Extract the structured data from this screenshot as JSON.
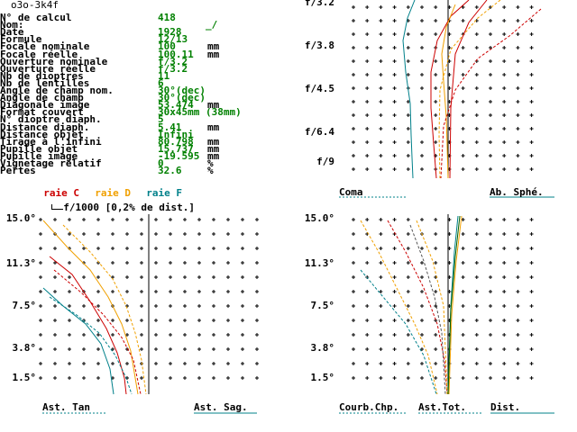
{
  "title": "o3o-3k4f",
  "params": [
    {
      "label": "N° de calcul",
      "value": "418",
      "unit": ""
    },
    {
      "label": "Nom:",
      "value": "",
      "unit": ""
    },
    {
      "label": "Date",
      "value": "1928",
      "unit": ""
    },
    {
      "label": "Formule",
      "value": "12/13",
      "unit": ""
    },
    {
      "label": "Focale nominale",
      "value": "100",
      "unit": "mm"
    },
    {
      "label": "Focale réelle",
      "value": "100.11",
      "unit": "mm"
    },
    {
      "label": "Ouverture nominale",
      "value": "f/3.2",
      "unit": ""
    },
    {
      "label": "Ouverture réelle",
      "value": "f/3.2",
      "unit": ""
    },
    {
      "label": "Nb de dioptres",
      "value": "11",
      "unit": ""
    },
    {
      "label": "Nb de lentilles",
      "value": "6",
      "unit": ""
    },
    {
      "label": "Angle de champ nom.",
      "value": "30°(dec)",
      "unit": ""
    },
    {
      "label": "Angle de champ",
      "value": "30°(dec)",
      "unit": ""
    },
    {
      "label": "Diagonale image",
      "value": "53.474",
      "unit": "mm"
    },
    {
      "label": "Format couvert",
      "value": "30x45mm (38mm)",
      "unit": ""
    },
    {
      "label": "N° dioptre diaph.",
      "value": "5",
      "unit": ""
    },
    {
      "label": "Distance diaph.",
      "value": "5.41",
      "unit": "mm"
    },
    {
      "label": "Distance objet",
      "value": "Infini",
      "unit": ""
    },
    {
      "label": "Tirage à l'infini",
      "value": "80.798",
      "unit": "mm"
    },
    {
      "label": "Pupille objet",
      "value": "15.737",
      "unit": "mm"
    },
    {
      "label": "Pupille image",
      "value": "-19.595",
      "unit": "mm"
    },
    {
      "label": "Vignetage relatif",
      "value": "0",
      "unit": "%"
    },
    {
      "label": "Pertes",
      "value": "32.6",
      "unit": "%"
    }
  ],
  "legend": {
    "raie_c": "raie C",
    "raie_d": "raie D",
    "raie_f": "raie F",
    "scale": "f/1000 [0,2% de dist.]",
    "color_c": "#cc0000",
    "color_d": "#f0a000",
    "color_f": "#00808a"
  },
  "aperture_plot": {
    "ticks": [
      "f/3.2",
      "f/3.8",
      "f/4.5",
      "f/6.4",
      "f/9"
    ],
    "label_left": "Coma",
    "label_right": "Ab. Sphé."
  },
  "field_plot": {
    "ticks": [
      "15.0°",
      "11.3°",
      "7.5°",
      "3.8°",
      "1.5°"
    ],
    "label_left": "Ast. Tan",
    "label_right": "Ast. Sag."
  },
  "field_plot_2": {
    "ticks": [
      "15.0°",
      "11.3°",
      "7.5°",
      "3.8°",
      "1.5°"
    ],
    "label_1": "Courb.Chp.",
    "label_2": "Ast.Tot.",
    "label_3": "Dist."
  },
  "colors": {
    "data_value": "#008000",
    "grid": "#000000"
  }
}
